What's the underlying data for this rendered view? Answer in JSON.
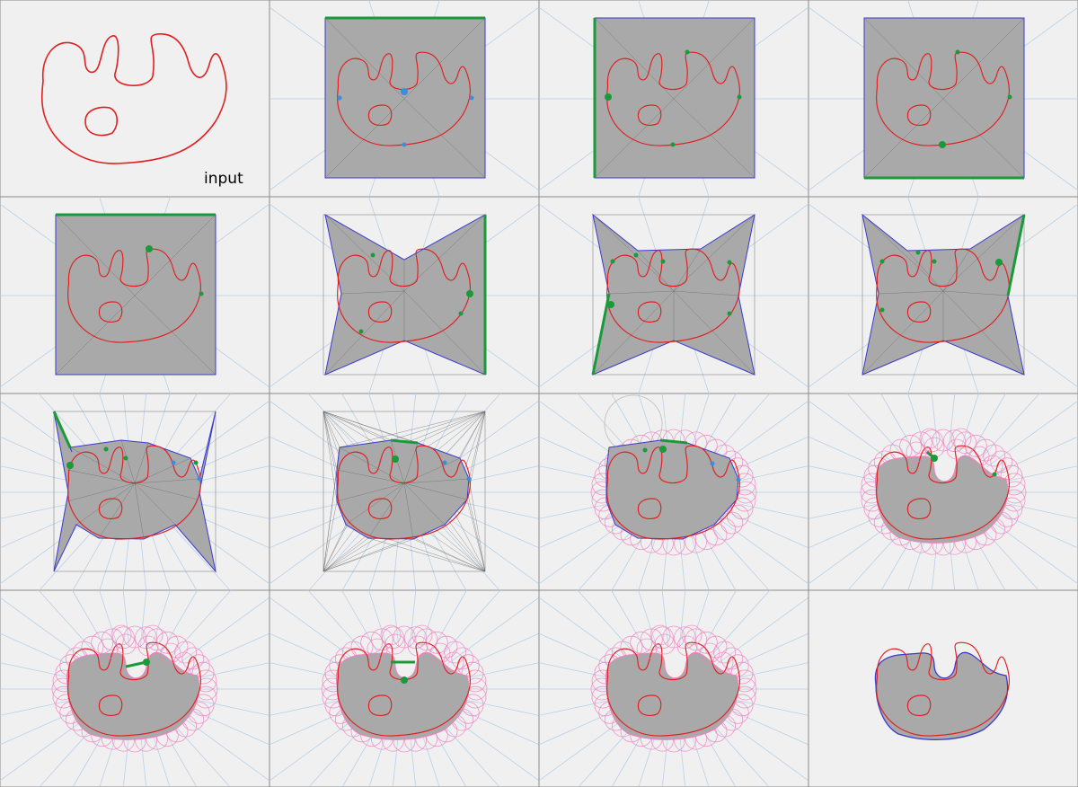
{
  "panels": {
    "first_caption": "input"
  },
  "colors": {
    "background": "#f0f0f0",
    "grid": "#8a8a8a",
    "curve": "#e02020",
    "fill": "#a9a9a9",
    "outline": "#3a3ad0",
    "highlight": "#1a9a3a",
    "point_blue": "#3a8ee0",
    "skeleton": "#b8d0e8",
    "circles": "#f080c0",
    "triangulation": "#666666"
  }
}
